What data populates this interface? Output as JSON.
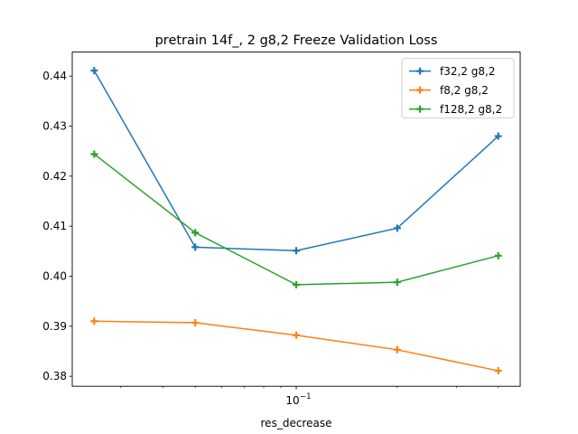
{
  "chart_data": {
    "type": "line",
    "title": "pretrain 14f_, 2 g8,2 Freeze Validation Loss",
    "xlabel": "res_decrease",
    "ylabel": "",
    "x_scale": "log",
    "x": [
      0.025,
      0.05,
      0.1,
      0.2,
      0.4
    ],
    "xlim": [
      0.0215,
      0.465
    ],
    "ylim": [
      0.378,
      0.4448
    ],
    "x_major_ticks": [
      {
        "value": 0.1,
        "label": "10^{-1}",
        "base": "10",
        "exponent": "−1"
      }
    ],
    "x_minor_ticks": [
      0.03,
      0.04,
      0.05,
      0.06,
      0.07,
      0.08,
      0.09,
      0.2,
      0.3,
      0.4
    ],
    "y_ticks": [
      0.38,
      0.39,
      0.4,
      0.41,
      0.42,
      0.43,
      0.44
    ],
    "y_tick_labels": [
      "0.38",
      "0.39",
      "0.40",
      "0.41",
      "0.42",
      "0.43",
      "0.44"
    ],
    "grid": false,
    "legend_position": "top-right",
    "marker": "plus",
    "series": [
      {
        "name": "f32,2 g8,2",
        "color": "#1f77b4",
        "values": [
          0.4411,
          0.4058,
          0.4051,
          0.4096,
          0.428
        ]
      },
      {
        "name": "f8,2 g8,2",
        "color": "#ff7f0e",
        "values": [
          0.391,
          0.3907,
          0.3882,
          0.3853,
          0.3811
        ]
      },
      {
        "name": "f128,2 g8,2",
        "color": "#2ca02c",
        "values": [
          0.4244,
          0.4087,
          0.3983,
          0.3988,
          0.4041
        ]
      }
    ]
  }
}
